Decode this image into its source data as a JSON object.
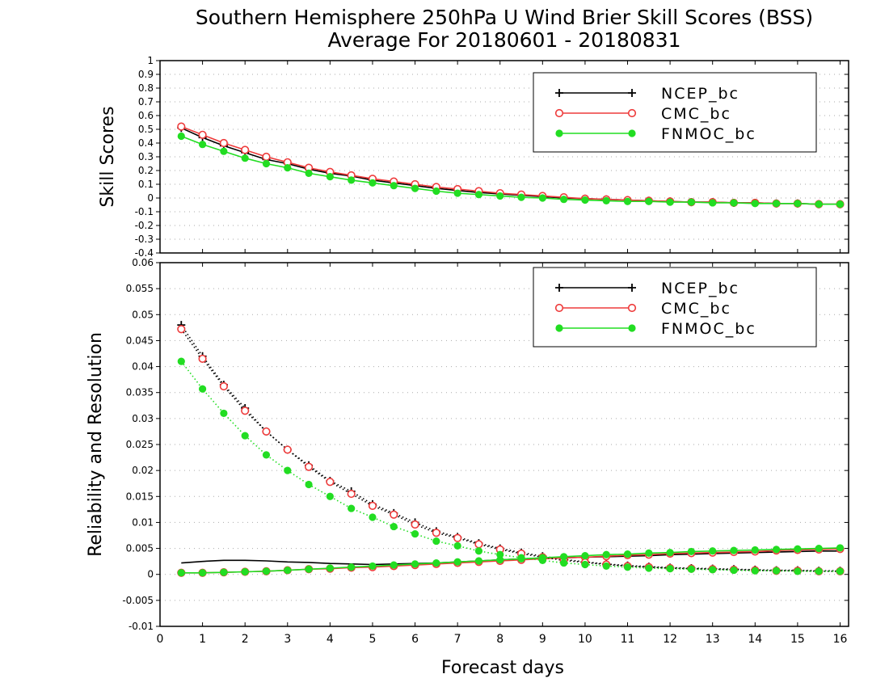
{
  "title_line1": "Southern Hemisphere 250hPa U Wind Brier Skill Scores (BSS)",
  "title_line2": "Average For 20180601 - 20180831",
  "chart_data": [
    {
      "type": "line",
      "ylabel": "Skill Scores",
      "xlabel": "",
      "xlim": [
        0,
        16.2
      ],
      "ylim": [
        -0.4,
        1
      ],
      "x_ticks": [
        0,
        1,
        2,
        3,
        4,
        5,
        6,
        7,
        8,
        9,
        10,
        11,
        12,
        13,
        14,
        15,
        16
      ],
      "y_ticks": [
        "-0.4",
        "-0.3",
        "-0.2",
        "-0.1",
        "0",
        "0.1",
        "0.2",
        "0.3",
        "0.4",
        "0.5",
        "0.6",
        "0.7",
        "0.8",
        "0.9",
        "1"
      ],
      "grid": true,
      "legend_position": "top-right",
      "x": [
        0.5,
        1,
        1.5,
        2,
        2.5,
        3,
        3.5,
        4,
        4.5,
        5,
        5.5,
        6,
        6.5,
        7,
        7.5,
        8,
        8.5,
        9,
        9.5,
        10,
        10.5,
        11,
        11.5,
        12,
        12.5,
        13,
        13.5,
        14,
        14.5,
        15,
        15.5,
        16
      ],
      "series": [
        {
          "name": "NCEP_bc",
          "color": "#000000",
          "marker": "plus",
          "style": "solid",
          "values": [
            0.51,
            0.44,
            0.38,
            0.33,
            0.28,
            0.25,
            0.21,
            0.18,
            0.16,
            0.13,
            0.11,
            0.09,
            0.07,
            0.055,
            0.04,
            0.03,
            0.02,
            0.01,
            0.0,
            -0.005,
            -0.01,
            -0.015,
            -0.02,
            -0.025,
            -0.03,
            -0.03,
            -0.035,
            -0.035,
            -0.04,
            -0.04,
            -0.045,
            -0.045
          ]
        },
        {
          "name": "CMC_bc",
          "color": "#ee3b3b",
          "marker": "circle",
          "style": "solid",
          "values": [
            0.52,
            0.46,
            0.4,
            0.35,
            0.3,
            0.26,
            0.22,
            0.19,
            0.165,
            0.14,
            0.12,
            0.1,
            0.08,
            0.065,
            0.05,
            0.035,
            0.025,
            0.015,
            0.005,
            -0.005,
            -0.01,
            -0.015,
            -0.02,
            -0.025,
            -0.03,
            -0.03,
            -0.035,
            -0.035,
            -0.04,
            -0.04,
            -0.045,
            -0.045
          ]
        },
        {
          "name": "FNMOC_bc",
          "color": "#22dd22",
          "marker": "dot",
          "style": "solid",
          "values": [
            0.45,
            0.39,
            0.34,
            0.29,
            0.25,
            0.22,
            0.18,
            0.155,
            0.13,
            0.11,
            0.09,
            0.07,
            0.05,
            0.035,
            0.025,
            0.015,
            0.005,
            0.0,
            -0.01,
            -0.015,
            -0.02,
            -0.025,
            -0.025,
            -0.03,
            -0.03,
            -0.035,
            -0.035,
            -0.04,
            -0.04,
            -0.04,
            -0.045,
            -0.045
          ]
        }
      ]
    },
    {
      "type": "line",
      "ylabel": "Reliability and Resolution",
      "xlabel": "Forecast days",
      "xlim": [
        0,
        16.2
      ],
      "ylim": [
        -0.01,
        0.06
      ],
      "x_ticks": [
        0,
        1,
        2,
        3,
        4,
        5,
        6,
        7,
        8,
        9,
        10,
        11,
        12,
        13,
        14,
        15,
        16
      ],
      "y_ticks": [
        "-0.01",
        "-0.005",
        "0",
        "0.005",
        "0.01",
        "0.015",
        "0.02",
        "0.025",
        "0.03",
        "0.035",
        "0.04",
        "0.045",
        "0.05",
        "0.055",
        "0.06"
      ],
      "grid": true,
      "legend_position": "top-right",
      "x": [
        0.5,
        1,
        1.5,
        2,
        2.5,
        3,
        3.5,
        4,
        4.5,
        5,
        5.5,
        6,
        6.5,
        7,
        7.5,
        8,
        8.5,
        9,
        9.5,
        10,
        10.5,
        11,
        11.5,
        12,
        12.5,
        13,
        13.5,
        14,
        14.5,
        15,
        15.5,
        16
      ],
      "series": [
        {
          "name": "NCEP_bc",
          "color": "#000000",
          "marker": "plus",
          "style": "solid",
          "show_markers": false,
          "values": [
            0.0022,
            0.0025,
            0.0027,
            0.0027,
            0.0026,
            0.0024,
            0.0023,
            0.0021,
            0.002,
            0.0019,
            0.002,
            0.0021,
            0.0022,
            0.0024,
            0.0026,
            0.0028,
            0.003,
            0.0031,
            0.0032,
            0.0033,
            0.0034,
            0.0035,
            0.0036,
            0.0038,
            0.0039,
            0.004,
            0.0041,
            0.0042,
            0.0043,
            0.0044,
            0.0045,
            0.0045
          ]
        },
        {
          "name": "NCEP_bc",
          "color": "#000000",
          "marker": "plus",
          "style": "dotted",
          "values": [
            0.048,
            0.042,
            0.0365,
            0.032,
            0.0275,
            0.024,
            0.021,
            0.018,
            0.016,
            0.0135,
            0.0118,
            0.01,
            0.0083,
            0.0072,
            0.006,
            0.005,
            0.0042,
            0.0035,
            0.0029,
            0.0024,
            0.002,
            0.0017,
            0.0015,
            0.0013,
            0.0012,
            0.0011,
            0.001,
            0.0009,
            0.0008,
            0.0008,
            0.0007,
            0.0007
          ]
        },
        {
          "name": "CMC_bc",
          "color": "#ee3b3b",
          "marker": "circle",
          "style": "solid",
          "values": [
            0.0003,
            0.0003,
            0.0004,
            0.0005,
            0.0006,
            0.0008,
            0.001,
            0.0011,
            0.0013,
            0.0014,
            0.0016,
            0.0018,
            0.002,
            0.0022,
            0.0024,
            0.0026,
            0.0028,
            0.003,
            0.0032,
            0.0033,
            0.0035,
            0.0037,
            0.0038,
            0.004,
            0.0041,
            0.0042,
            0.0043,
            0.0044,
            0.0046,
            0.0047,
            0.0048,
            0.0049
          ]
        },
        {
          "name": "CMC_bc",
          "color": "#ee3b3b",
          "marker": "circle",
          "style": "dotted",
          "values": [
            0.0472,
            0.0415,
            0.0362,
            0.0315,
            0.0275,
            0.024,
            0.0207,
            0.0178,
            0.0155,
            0.0132,
            0.0115,
            0.0096,
            0.008,
            0.007,
            0.0058,
            0.0048,
            0.004,
            0.0033,
            0.0027,
            0.0023,
            0.0019,
            0.0016,
            0.0014,
            0.0012,
            0.0011,
            0.001,
            0.0009,
            0.0008,
            0.0007,
            0.0007,
            0.0006,
            0.0006
          ]
        },
        {
          "name": "FNMOC_bc",
          "color": "#22dd22",
          "marker": "dot",
          "style": "solid",
          "values": [
            0.0003,
            0.0003,
            0.0004,
            0.0005,
            0.0006,
            0.0008,
            0.001,
            0.0012,
            0.0014,
            0.0016,
            0.0018,
            0.002,
            0.0022,
            0.0024,
            0.0026,
            0.0028,
            0.003,
            0.0032,
            0.0034,
            0.0036,
            0.0038,
            0.0039,
            0.0041,
            0.0042,
            0.0044,
            0.0045,
            0.0046,
            0.0047,
            0.0048,
            0.0049,
            0.005,
            0.0051
          ]
        },
        {
          "name": "FNMOC_bc",
          "color": "#22dd22",
          "marker": "dot",
          "style": "dotted",
          "values": [
            0.041,
            0.0357,
            0.031,
            0.0267,
            0.023,
            0.02,
            0.0173,
            0.015,
            0.0127,
            0.011,
            0.0092,
            0.0078,
            0.0064,
            0.0055,
            0.0045,
            0.0038,
            0.0032,
            0.0027,
            0.0022,
            0.0019,
            0.0016,
            0.0014,
            0.0012,
            0.0011,
            0.001,
            0.0009,
            0.0008,
            0.0007,
            0.0007,
            0.0006,
            0.0006,
            0.0006
          ]
        }
      ]
    }
  ]
}
